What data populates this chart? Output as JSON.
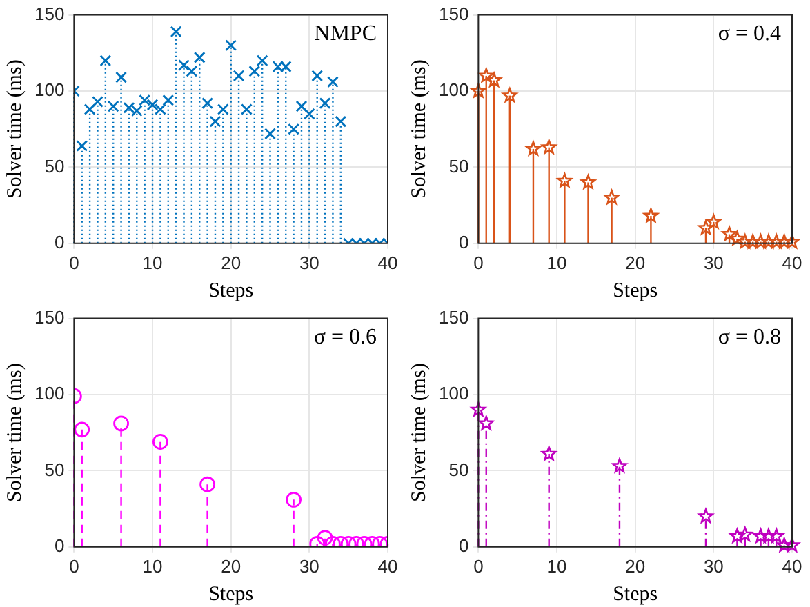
{
  "chart_data": [
    {
      "type": "lollipop",
      "xlabel": "Steps",
      "ylabel": "Solver time (ms)",
      "annotations": [
        "NMPC"
      ],
      "xlim": [
        0,
        40
      ],
      "xticks": [
        0,
        10,
        20,
        30,
        40
      ],
      "ylim": [
        0,
        150
      ],
      "yticks": [
        0,
        50,
        100,
        150
      ],
      "grid": true,
      "marker": "cross",
      "line_style": "dotted",
      "color": "#0072bd",
      "x": [
        0,
        1,
        2,
        3,
        4,
        5,
        6,
        7,
        8,
        9,
        10,
        11,
        12,
        13,
        14,
        15,
        16,
        17,
        18,
        19,
        20,
        21,
        22,
        23,
        24,
        25,
        26,
        27,
        28,
        29,
        30,
        31,
        32,
        33,
        34,
        35,
        36,
        37,
        38,
        39,
        40
      ],
      "values": [
        100,
        64,
        88,
        93,
        120,
        90,
        109,
        89,
        87,
        94,
        91,
        88,
        94,
        139,
        117,
        113,
        122,
        92,
        80,
        88,
        130,
        110,
        88,
        113,
        120,
        72,
        116,
        116,
        75,
        90,
        85,
        110,
        92,
        106,
        80,
        0,
        0,
        0,
        0,
        0,
        0
      ]
    },
    {
      "type": "lollipop",
      "xlabel": "Steps",
      "ylabel": "Solver time (ms)",
      "annotations": [
        "σ = 0.4"
      ],
      "xlim": [
        0,
        40
      ],
      "xticks": [
        0,
        10,
        20,
        30,
        40
      ],
      "ylim": [
        0,
        150
      ],
      "yticks": [
        0,
        50,
        100,
        150
      ],
      "grid": true,
      "marker": "star",
      "line_style": "solid",
      "color": "#d95319",
      "x": [
        0,
        1,
        2,
        4,
        7,
        9,
        11,
        14,
        17,
        22,
        29,
        30,
        32,
        33,
        34,
        35,
        36,
        37,
        38,
        39,
        40
      ],
      "values": [
        100,
        110,
        107,
        97,
        62,
        63,
        41,
        40,
        30,
        18,
        10,
        14,
        6,
        3,
        1,
        1,
        1,
        1,
        1,
        1,
        1
      ]
    },
    {
      "type": "lollipop",
      "xlabel": "Steps",
      "ylabel": "Solver time (ms)",
      "annotations": [
        "σ = 0.6"
      ],
      "xlim": [
        0,
        40
      ],
      "xticks": [
        0,
        10,
        20,
        30,
        40
      ],
      "ylim": [
        0,
        150
      ],
      "yticks": [
        0,
        50,
        100,
        150
      ],
      "grid": true,
      "marker": "circle",
      "line_style": "dashed",
      "color": "#ff00ff",
      "x": [
        0,
        1,
        6,
        11,
        17,
        28,
        31,
        32,
        33,
        34,
        35,
        36,
        37,
        38,
        39,
        40
      ],
      "values": [
        99,
        77,
        81,
        69,
        41,
        31,
        2,
        6,
        2,
        2,
        2,
        2,
        2,
        2,
        2,
        2
      ]
    },
    {
      "type": "lollipop",
      "xlabel": "Steps",
      "ylabel": "Solver time (ms)",
      "annotations": [
        "σ = 0.8"
      ],
      "xlim": [
        0,
        40
      ],
      "xticks": [
        0,
        10,
        20,
        30,
        40
      ],
      "ylim": [
        0,
        150
      ],
      "yticks": [
        0,
        50,
        100,
        150
      ],
      "grid": true,
      "marker": "star",
      "line_style": "dashdot",
      "color": "#bf00bf",
      "x": [
        0,
        1,
        9,
        18,
        29,
        33,
        34,
        36,
        37,
        38,
        39,
        40
      ],
      "values": [
        90,
        81,
        61,
        53,
        20,
        7,
        8,
        7,
        7,
        7,
        1,
        1
      ]
    }
  ]
}
